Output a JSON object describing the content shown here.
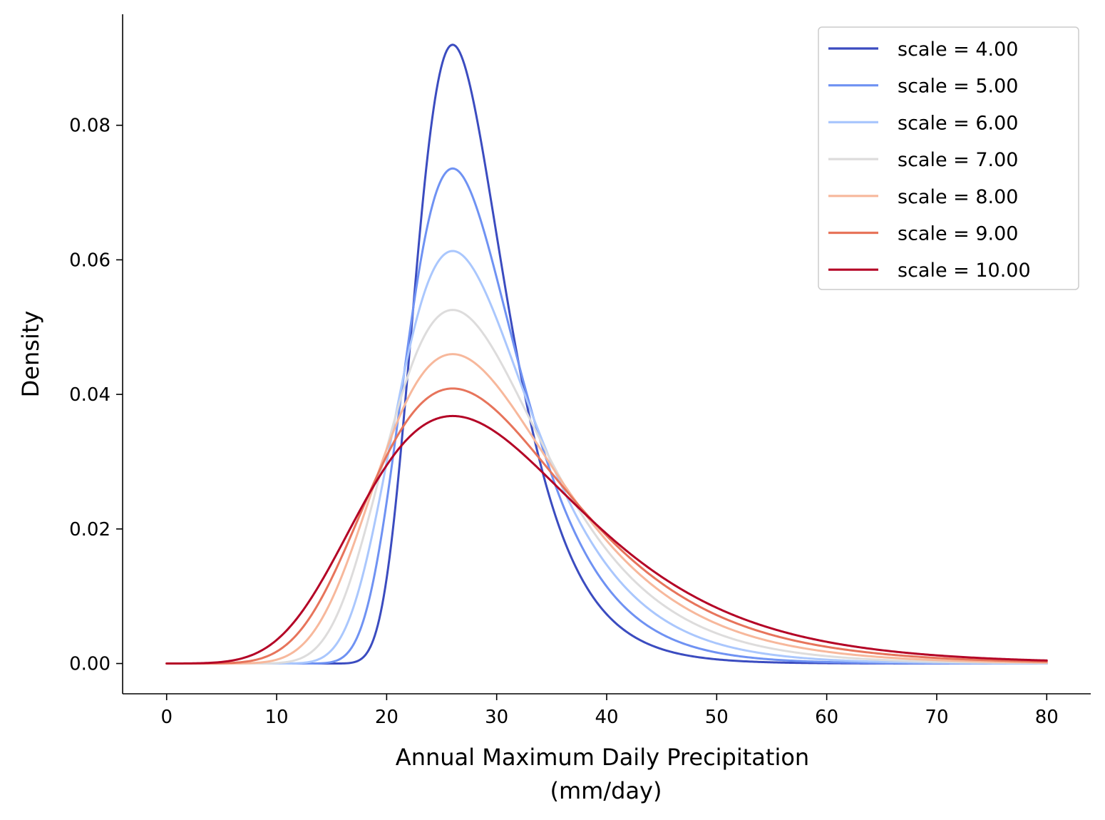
{
  "chart_data": {
    "type": "line",
    "title": "",
    "xlabel_line1": "Annual Maximum Daily Precipitation",
    "xlabel_line2": "(mm/day)",
    "ylabel": "Density",
    "xlim": [
      -4,
      84
    ],
    "ylim": [
      -0.0045,
      0.0965
    ],
    "x_ticks": [
      0,
      10,
      20,
      30,
      40,
      50,
      60,
      70,
      80
    ],
    "x_tick_labels": [
      "0",
      "10",
      "20",
      "30",
      "40",
      "50",
      "60",
      "70",
      "80"
    ],
    "y_ticks": [
      0.0,
      0.02,
      0.04,
      0.06,
      0.08
    ],
    "y_tick_labels": [
      "0.00",
      "0.02",
      "0.04",
      "0.06",
      "0.08"
    ],
    "grid": false,
    "legend_position": "top-right",
    "distribution": "gumbel",
    "location": 26,
    "x_range": [
      0,
      80
    ],
    "series": [
      {
        "name": "scale = 4.00",
        "scale": 4,
        "color": "#3b4cc0"
      },
      {
        "name": "scale = 5.00",
        "scale": 5,
        "color": "#6f92f3"
      },
      {
        "name": "scale = 6.00",
        "scale": 6,
        "color": "#aac7fd"
      },
      {
        "name": "scale = 7.00",
        "scale": 7,
        "color": "#dddcdc"
      },
      {
        "name": "scale = 8.00",
        "scale": 8,
        "color": "#f7b89c"
      },
      {
        "name": "scale = 9.00",
        "scale": 9,
        "color": "#e7745b"
      },
      {
        "name": "scale = 10.00",
        "scale": 10,
        "color": "#b40426"
      }
    ]
  }
}
